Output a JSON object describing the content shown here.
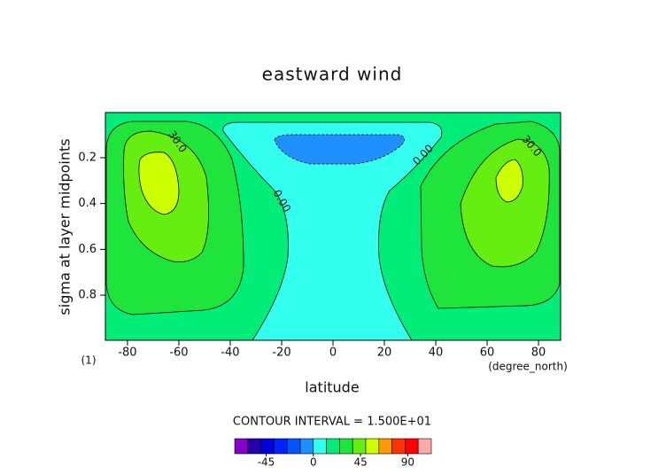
{
  "chart_data": {
    "type": "contour",
    "title": "eastward wind",
    "xlabel": "latitude",
    "ylabel": "sigma at layer midpoints",
    "xunit": "(degree_north)",
    "corner_note": "(1)",
    "interval_note": "CONTOUR INTERVAL = 1.500E+01",
    "xlim": [
      -88.6,
      88.6
    ],
    "ylim": [
      0.997,
      0.003
    ],
    "xticks": [
      -80,
      -60,
      -40,
      -20,
      0,
      20,
      40,
      60,
      80
    ],
    "yticks": [
      0.2,
      0.4,
      0.6,
      0.8
    ],
    "regions": [
      {
        "level": 0,
        "color": "#00ee77"
      },
      {
        "level": -15,
        "color": "#33ffee"
      },
      {
        "level": -30,
        "color": "#1e90ff"
      },
      {
        "level": 15,
        "color": "#1ee43c"
      },
      {
        "level": 30,
        "color": "#66ee11"
      },
      {
        "level": 45,
        "color": "#ccff00"
      },
      {
        "level": 15,
        "color": "#1ee43c"
      },
      {
        "level": 30,
        "color": "#66ee11"
      },
      {
        "level": 45,
        "color": "#ccff00"
      }
    ],
    "contour_labels": [
      {
        "value": 30,
        "label": "30.0"
      },
      {
        "value": 0,
        "label": "0.00"
      },
      {
        "value": 0,
        "label": "0.00"
      },
      {
        "value": 30,
        "label": "30.0"
      }
    ],
    "colorbar": {
      "levels": [
        -75,
        -62.5,
        -50,
        -37.5,
        -25,
        -12.5,
        0,
        12.5,
        25,
        37.5,
        50,
        62.5,
        75,
        87.5,
        100,
        112.5
      ],
      "colors": [
        "#8800cc",
        "#2200aa",
        "#0000dd",
        "#0022ff",
        "#0055ff",
        "#1e90ff",
        "#33ffee",
        "#00ee77",
        "#1ee43c",
        "#66ee11",
        "#ccff00",
        "#ff9900",
        "#ff3300",
        "#ff0000",
        "#ffaaaa"
      ],
      "ticks": [
        -45,
        0,
        45,
        90
      ]
    }
  }
}
